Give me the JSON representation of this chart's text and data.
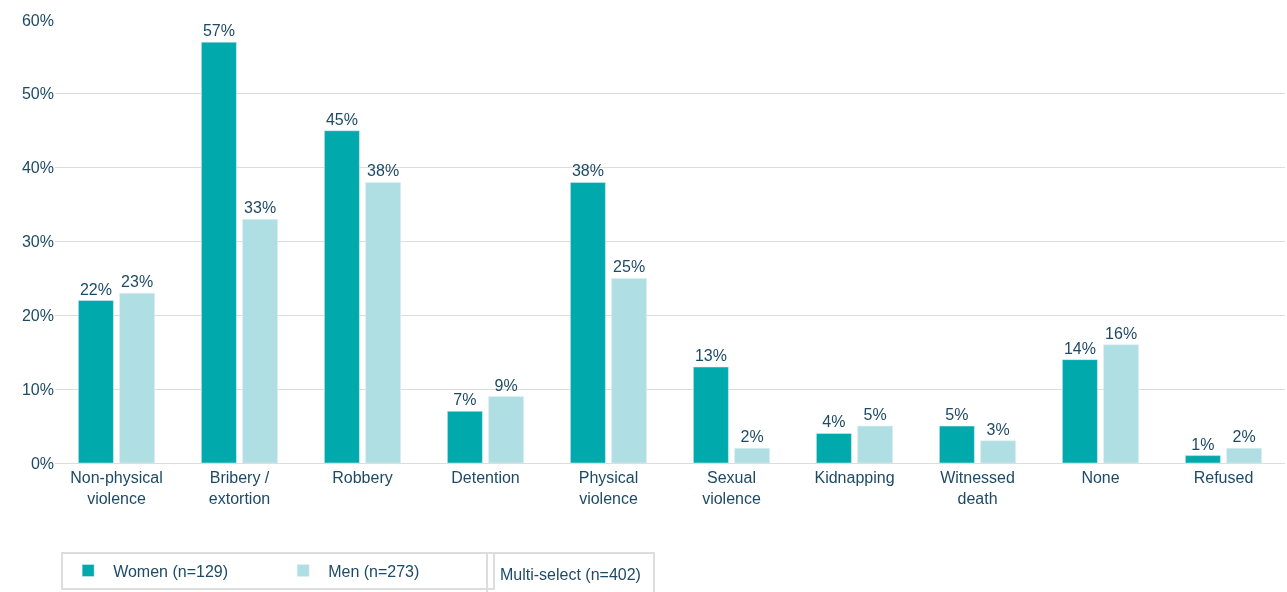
{
  "chart_data": {
    "type": "bar",
    "categories": [
      "Non-physical\nviolence",
      "Bribery /\nextortion",
      "Robbery",
      "Detention",
      "Physical\nviolence",
      "Sexual\nviolence",
      "Kidnapping",
      "Witnessed\ndeath",
      "None",
      "Refused"
    ],
    "series": [
      {
        "name": "Women (n=129)",
        "color": "#00a9ac",
        "values": [
          22,
          57,
          45,
          7,
          38,
          13,
          4,
          5,
          14,
          1
        ],
        "value_labels": [
          "22%",
          "57%",
          "45%",
          "7%",
          "38%",
          "13%",
          "4%",
          "5%",
          "14%",
          "1%"
        ]
      },
      {
        "name": "Men (n=273)",
        "color": "#b0dfe3",
        "values": [
          23,
          33,
          38,
          9,
          25,
          2,
          5,
          3,
          16,
          2
        ],
        "value_labels": [
          "23%",
          "33%",
          "38%",
          "9%",
          "25%",
          "2%",
          "5%",
          "3%",
          "16%",
          "2%"
        ]
      }
    ],
    "ylim": [
      0,
      60
    ],
    "yticks": [
      {
        "value": 0,
        "label": "0%"
      },
      {
        "value": 10,
        "label": "10%"
      },
      {
        "value": 20,
        "label": "20%"
      },
      {
        "value": 30,
        "label": "30%"
      },
      {
        "value": 40,
        "label": "40%"
      },
      {
        "value": 50,
        "label": "50%"
      },
      {
        "value": 60,
        "label": "60%"
      }
    ],
    "grid": "y",
    "legend": "bottom left",
    "annotations": [
      "Multi-select (n=402)"
    ]
  }
}
